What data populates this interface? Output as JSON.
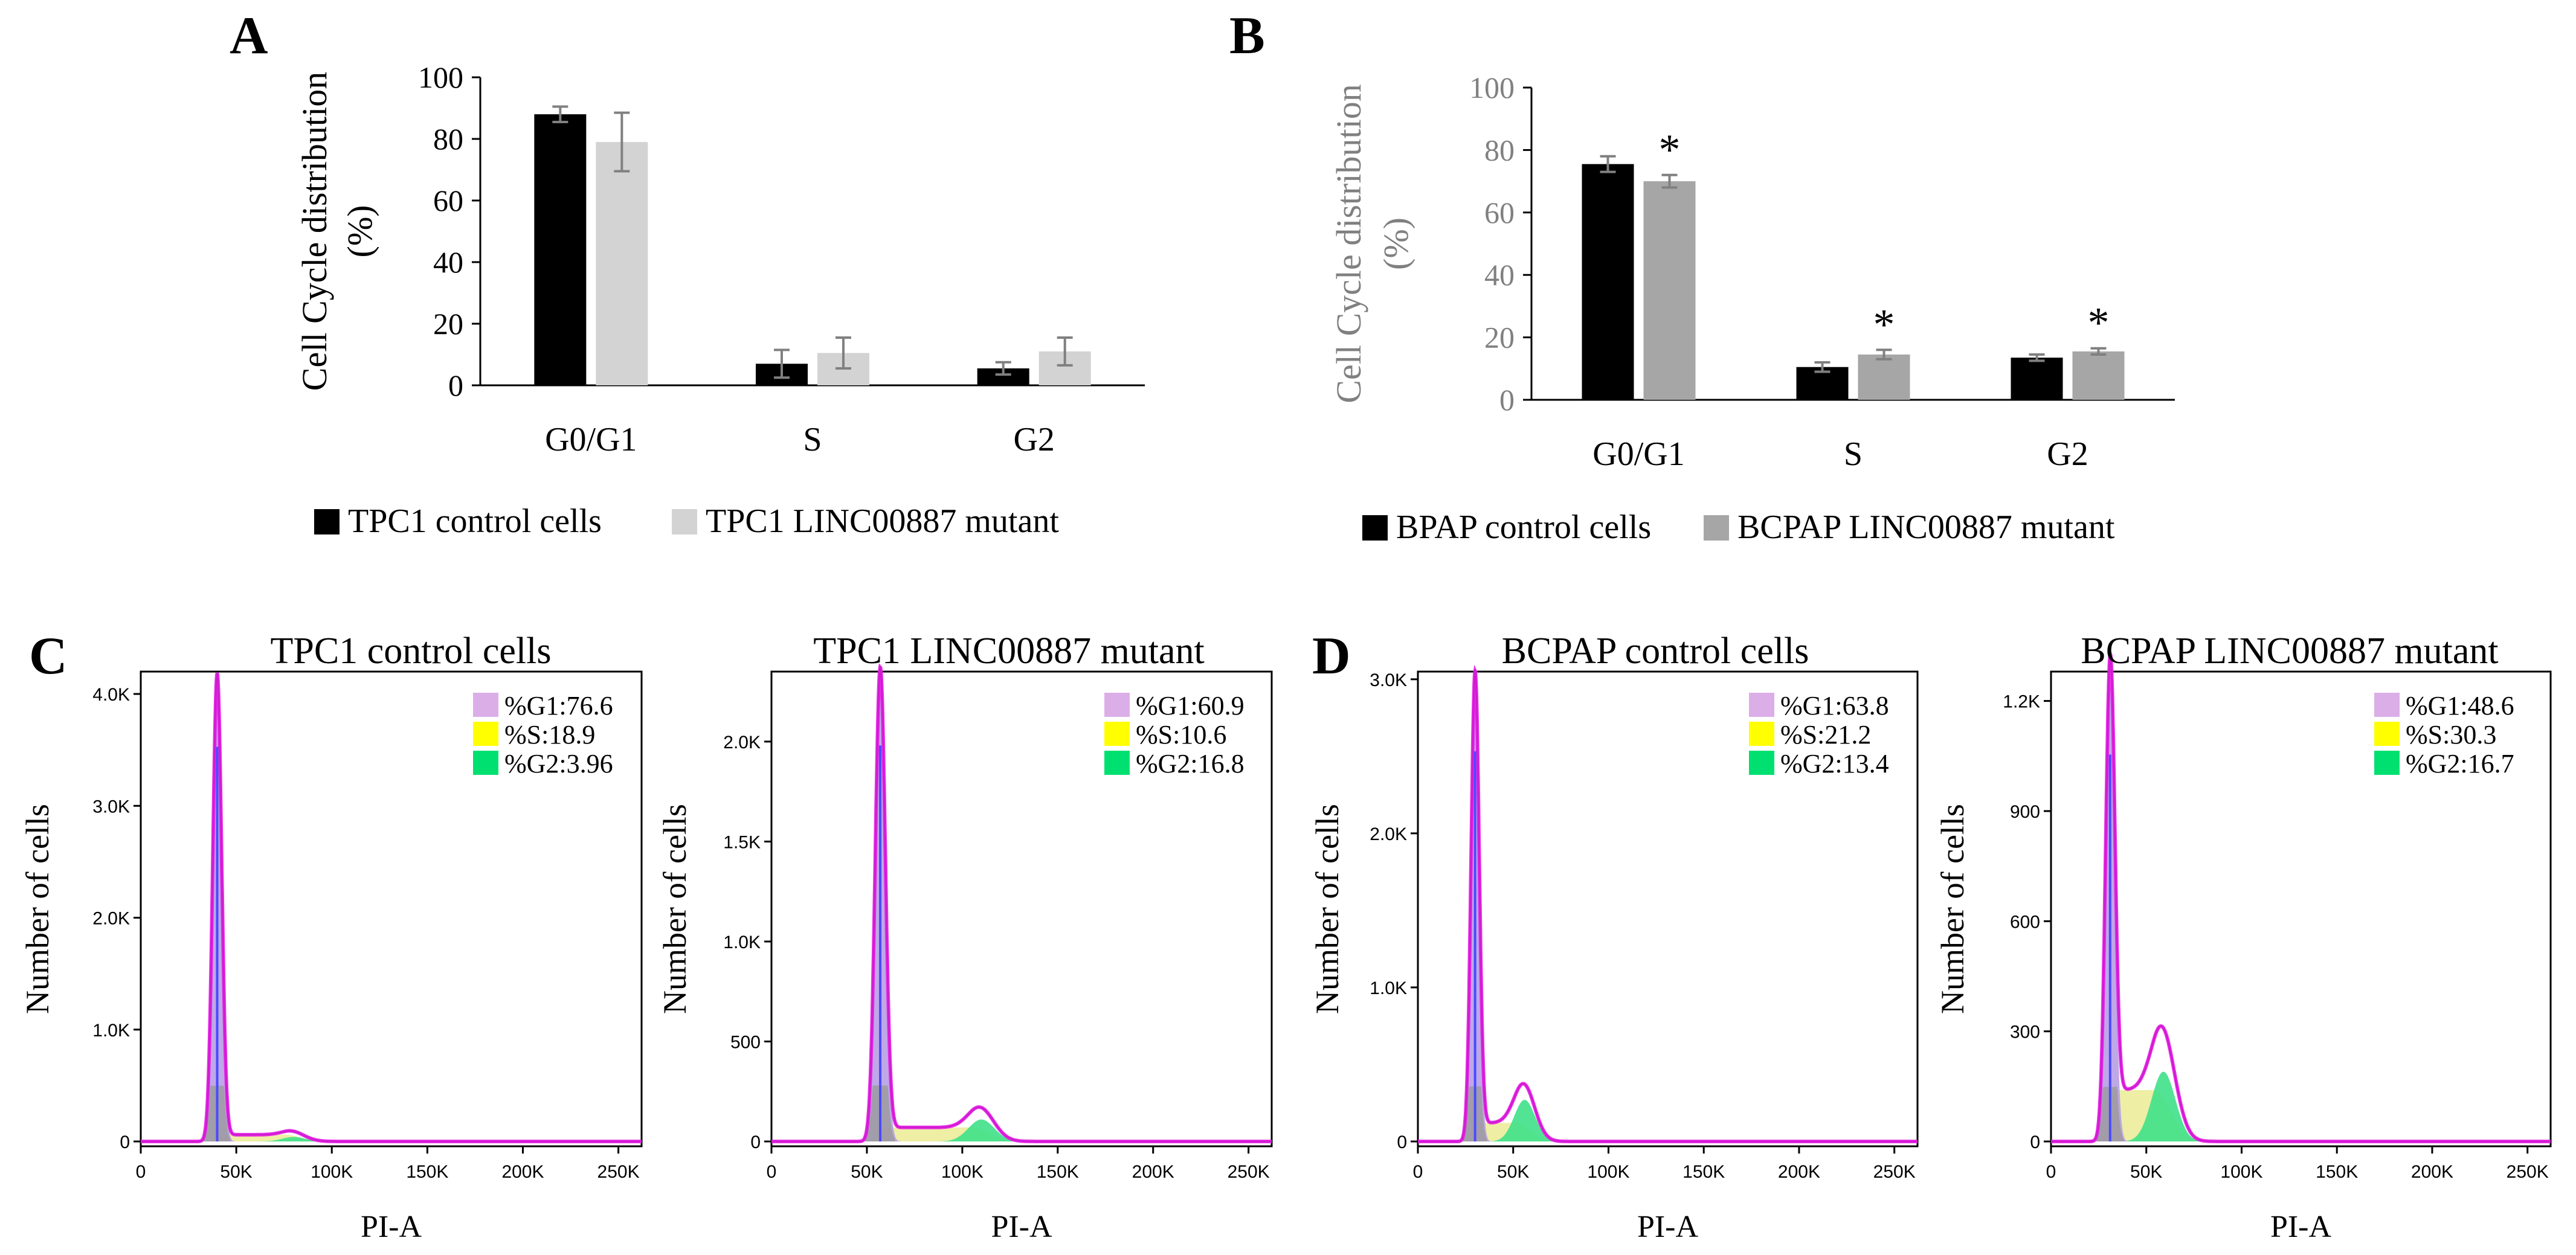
{
  "panel_letters": [
    "A",
    "B",
    "C",
    "D"
  ],
  "tick_label_font_note": "axis tick labels",
  "chart_data": [
    {
      "panel": "A",
      "type": "bar",
      "title": "",
      "xlabel": "",
      "ylabel_lines": [
        "Cell Cycle distribution",
        "(%)"
      ],
      "categories": [
        "G0/G1",
        "S",
        "G2"
      ],
      "ylim": [
        0,
        100
      ],
      "yticks": [
        "0",
        "20",
        "40",
        "60",
        "80",
        "100"
      ],
      "series": [
        {
          "name": "TPC1 control cells",
          "color": "#000000",
          "values": [
            88,
            7,
            5.5
          ],
          "errors": [
            2.5,
            4.5,
            2
          ]
        },
        {
          "name": "TPC1 LINC00887 mutant",
          "color": "#d3d3d3",
          "values": [
            79,
            10.5,
            11
          ],
          "errors": [
            9.5,
            5,
            4.5
          ]
        }
      ],
      "significance": [
        "",
        "",
        ""
      ]
    },
    {
      "panel": "B",
      "type": "bar",
      "title": "",
      "xlabel": "",
      "ylabel_lines": [
        "Cell Cycle distribution",
        "(%)"
      ],
      "categories": [
        "G0/G1",
        "S",
        "G2"
      ],
      "ylim": [
        0,
        100
      ],
      "yticks": [
        "0",
        "20",
        "40",
        "60",
        "80",
        "100"
      ],
      "series": [
        {
          "name": "BPAP control cells",
          "color": "#000000",
          "values": [
            75.5,
            10.5,
            13.5
          ],
          "errors": [
            2.5,
            1.5,
            1
          ]
        },
        {
          "name": "BCPAP LINC00887 mutant",
          "color": "#a6a6a6",
          "values": [
            70,
            14.5,
            15.5
          ],
          "errors": [
            2,
            1.5,
            1
          ]
        }
      ],
      "significance": [
        "*",
        "*",
        "*"
      ]
    },
    {
      "panel": "C1",
      "type": "area",
      "title": "TPC1 control cells",
      "xlabel": "PI-A",
      "ylabel": "Number of cells",
      "xlim": [
        0,
        262144
      ],
      "xticks": [
        "0",
        "50K",
        "100K",
        "150K",
        "200K",
        "250K"
      ],
      "ylim": [
        0,
        4200
      ],
      "yticks": [
        {
          "v": 0,
          "t": "0"
        },
        {
          "v": 1000,
          "t": "1.0K"
        },
        {
          "v": 2000,
          "t": "2.0K"
        },
        {
          "v": 3000,
          "t": "3.0K"
        },
        {
          "v": 4000,
          "t": "4.0K"
        }
      ],
      "peaks": {
        "g1": 40000,
        "g1_height": 4150,
        "g1_width": 2300,
        "s_level": 60,
        "g2": 80000,
        "g2_height": 40
      },
      "legend": [
        "%G1:76.6",
        "%S:18.9",
        "%G2:3.96"
      ]
    },
    {
      "panel": "C2",
      "type": "area",
      "title": "TPC1 LINC00887 mutant",
      "xlabel": "PI-A",
      "ylabel": "Number of cells",
      "xlim": [
        0,
        262144
      ],
      "xticks": [
        "0",
        "50K",
        "100K",
        "150K",
        "200K",
        "250K"
      ],
      "ylim": [
        0,
        2350
      ],
      "yticks": [
        {
          "v": 0,
          "t": "0"
        },
        {
          "v": 500,
          "t": "500"
        },
        {
          "v": 1000,
          "t": "1.0K"
        },
        {
          "v": 1500,
          "t": "1.5K"
        },
        {
          "v": 2000,
          "t": "2.0K"
        }
      ],
      "peaks": {
        "g1": 57000,
        "g1_height": 2330,
        "g1_width": 2600,
        "s_level": 70,
        "g2": 110000,
        "g2_height": 110
      },
      "legend": [
        "%G1:60.9",
        "%S:10.6",
        "%G2:16.8"
      ]
    },
    {
      "panel": "D1",
      "type": "area",
      "title": "BCPAP control cells",
      "xlabel": "PI-A",
      "ylabel": "Number of cells",
      "xlim": [
        0,
        262144
      ],
      "xticks": [
        "0",
        "50K",
        "100K",
        "150K",
        "200K",
        "250K"
      ],
      "ylim": [
        0,
        3050
      ],
      "yticks": [
        {
          "v": 0,
          "t": "0"
        },
        {
          "v": 1000,
          "t": "1.0K"
        },
        {
          "v": 2000,
          "t": "2.0K"
        },
        {
          "v": 3000,
          "t": "3.0K"
        }
      ],
      "peaks": {
        "g1": 30000,
        "g1_height": 2980,
        "g1_width": 2100,
        "s_level": 120,
        "g2": 56000,
        "g2_height": 270
      },
      "legend": [
        "%G1:63.8",
        "%S:21.2",
        "%G2:13.4"
      ]
    },
    {
      "panel": "D2",
      "type": "area",
      "title": "BCPAP LINC00887 mutant",
      "xlabel": "PI-A",
      "ylabel": "Number of cells",
      "xlim": [
        0,
        262144
      ],
      "xticks": [
        "0",
        "50K",
        "100K",
        "150K",
        "200K",
        "250K"
      ],
      "ylim": [
        0,
        1280
      ],
      "yticks": [
        {
          "v": 0,
          "t": "0"
        },
        {
          "v": 300,
          "t": "300"
        },
        {
          "v": 600,
          "t": "600"
        },
        {
          "v": 900,
          "t": "900"
        },
        {
          "v": 1200,
          "t": "1.2K"
        }
      ],
      "peaks": {
        "g1": 31000,
        "g1_height": 1240,
        "g1_width": 2400,
        "s_level": 140,
        "g2": 59000,
        "g2_height": 190
      },
      "legend": [
        "%G1:48.6",
        "%S:30.3",
        "%G2:16.7"
      ]
    }
  ],
  "colors": {
    "curve": "#e81ee8",
    "g1_fill": "#b79ee6",
    "s_fill": "#ecec9a",
    "g2_fill": "#3fe08a",
    "legend_g1": "#dcaee8",
    "legend_s": "#ffff00",
    "legend_g2": "#00e070"
  }
}
